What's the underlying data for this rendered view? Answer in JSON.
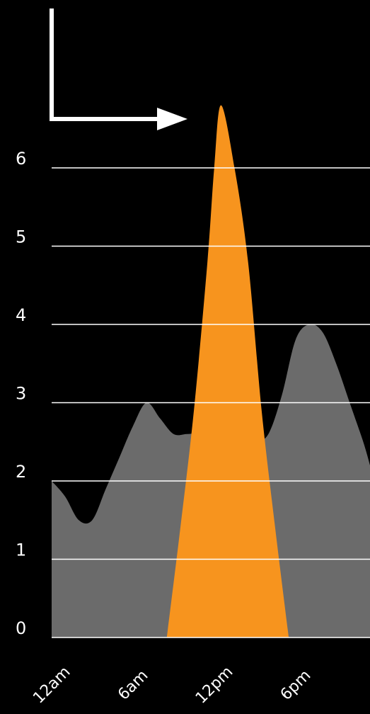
{
  "chart_data": {
    "type": "area",
    "title": "",
    "xlabel": "",
    "ylabel": "",
    "ylim": [
      0,
      6.8
    ],
    "grid": true,
    "y_ticks": [
      "0",
      "1",
      "2",
      "3",
      "4",
      "5",
      "6"
    ],
    "x_tick_labels": [
      "12am",
      "6am",
      "12pm",
      "6pm"
    ],
    "x_tick_hours": [
      0,
      6,
      12,
      18
    ],
    "xlim": [
      0,
      23.5
    ],
    "series": [
      {
        "x": [
          0,
          1,
          2,
          3,
          4,
          5,
          6,
          7,
          8,
          9,
          10,
          11,
          12,
          13,
          14,
          15,
          16,
          17,
          18,
          19,
          20,
          21,
          22,
          23,
          23.5
        ],
        "values": [
          2.0,
          1.8,
          1.5,
          1.5,
          1.9,
          2.3,
          2.7,
          3.0,
          2.8,
          2.6,
          2.6,
          2.6,
          2.5,
          2.5,
          2.5,
          2.5,
          2.6,
          3.1,
          3.8,
          4.0,
          3.9,
          3.5,
          3.0,
          2.5,
          2.2
        ],
        "color": "#6b6b6b"
      },
      {
        "x": [
          8.5,
          9.5,
          10.5,
          11.5,
          12.0,
          12.5,
          13.5,
          14.5,
          15.5,
          16.5,
          17.5
        ],
        "values": [
          0,
          1.4,
          2.9,
          4.8,
          6.0,
          6.8,
          6.0,
          4.8,
          2.9,
          1.4,
          0
        ],
        "color": "#f7941e"
      }
    ],
    "axis_indicator": {
      "color": "#ffffff",
      "description_icon": "corner-arrow-icon"
    },
    "gridline_color": "#ffffff",
    "background": "#000000"
  }
}
